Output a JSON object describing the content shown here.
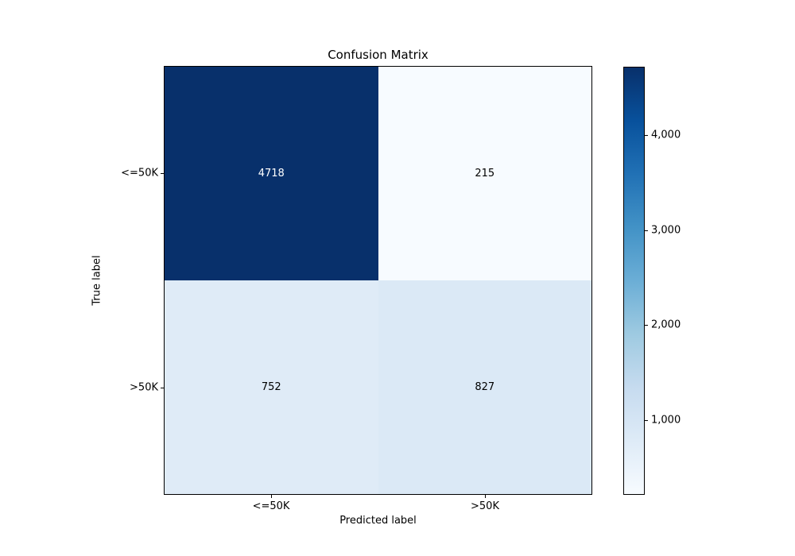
{
  "chart_data": {
    "type": "heatmap",
    "title": "Confusion Matrix",
    "xlabel": "Predicted label",
    "ylabel": "True label",
    "x_categories": [
      "<=50K",
      ">50K"
    ],
    "y_categories": [
      "<=50K",
      ">50K"
    ],
    "matrix": [
      [
        4718,
        215
      ],
      [
        752,
        827
      ]
    ],
    "cell_labels": [
      [
        "4718",
        "215"
      ],
      [
        "752",
        "827"
      ]
    ],
    "cell_colors": [
      [
        "#08306b",
        "#f7fbff"
      ],
      [
        "#dfebf7",
        "#dbe9f6"
      ]
    ],
    "cell_text_colors": [
      [
        "#ffffff",
        "#000000"
      ],
      [
        "#000000",
        "#000000"
      ]
    ],
    "colormap": "Blues",
    "vmin": 215,
    "vmax": 4718,
    "grid": false,
    "legend_position": "right-colorbar",
    "colorbar": {
      "ticks": [
        {
          "value": 1000,
          "label": "1,000"
        },
        {
          "value": 2000,
          "label": "2,000"
        },
        {
          "value": 3000,
          "label": "3,000"
        },
        {
          "value": 4000,
          "label": "4,000"
        }
      ],
      "gradient_stops": [
        "#f7fbff",
        "#deebf7",
        "#c6dbef",
        "#9ecae1",
        "#6baed6",
        "#4292c6",
        "#2171b5",
        "#08519c",
        "#08306b"
      ]
    }
  }
}
